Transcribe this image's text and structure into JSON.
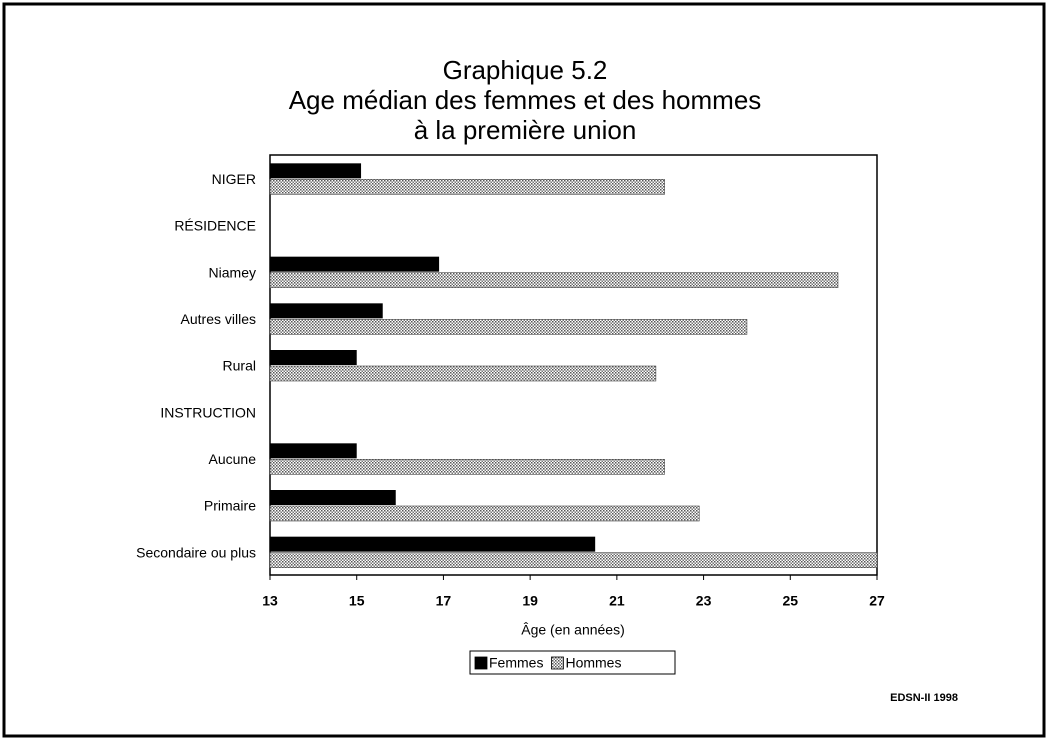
{
  "chart_data": {
    "type": "hbar",
    "title": [
      "Graphique 5.2",
      "Age médian des femmes et des hommes",
      "à la première union"
    ],
    "categories": [
      "NIGER",
      "RÉSIDENCE",
      "Niamey",
      "Autres villes",
      "Rural",
      "INSTRUCTION",
      "Aucune",
      "Primaire",
      "Secondaire ou plus"
    ],
    "series": [
      {
        "name": "Femmes",
        "color": "#000000",
        "values": [
          15.1,
          null,
          16.9,
          15.6,
          15.0,
          null,
          15.0,
          15.9,
          20.5
        ]
      },
      {
        "name": "Hommes",
        "color": "#c4c4c4",
        "values": [
          22.1,
          null,
          26.1,
          24.0,
          21.9,
          null,
          22.1,
          22.9,
          27.0
        ]
      }
    ],
    "xlim": [
      13,
      27
    ],
    "xticks": [
      13,
      15,
      17,
      19,
      21,
      23,
      25,
      27
    ],
    "xlabel": "Âge (en années)",
    "legend": "bottom",
    "source": "EDSN-II 1998"
  }
}
